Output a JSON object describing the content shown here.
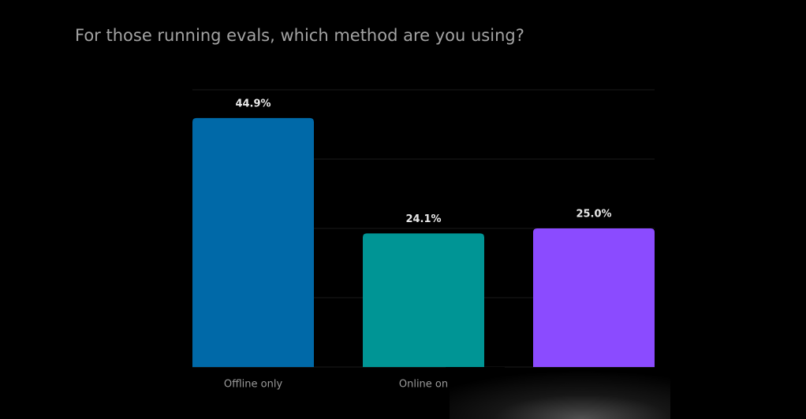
{
  "chart_data": {
    "type": "bar",
    "title": "For those running evals, which method are you using?",
    "categories": [
      "Offline only",
      "Online on",
      null
    ],
    "values": [
      44.9,
      24.1,
      25.0
    ],
    "value_labels": [
      "44.9%",
      "24.1%",
      "25.0%"
    ],
    "colors": [
      "#0069a8",
      "#009595",
      "#8b4bff"
    ],
    "ylim": [
      0,
      50
    ],
    "yticks": [
      0,
      12.5,
      25,
      37.5,
      50
    ],
    "grid": true
  }
}
